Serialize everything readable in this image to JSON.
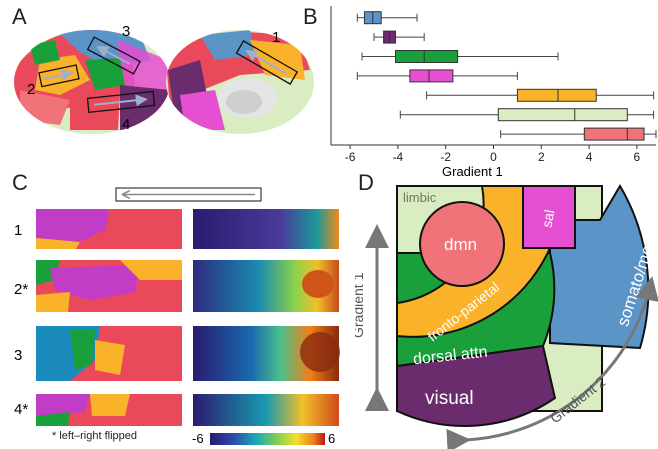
{
  "panels": {
    "A": "A",
    "B": "B",
    "C": "C",
    "D": "D"
  },
  "panel_a": {
    "region_labels": [
      "1",
      "2",
      "3",
      "4"
    ]
  },
  "chart_data": {
    "type": "box",
    "xlabel": "Gradient 1",
    "ylabel": "",
    "title": "",
    "xlim": [
      -6.8,
      6.8
    ],
    "xticks": [
      -6,
      -4,
      -2,
      0,
      2,
      4,
      6
    ],
    "xtick_labels": [
      "-6",
      "-4",
      "-2",
      "0",
      "2",
      "4",
      "6"
    ],
    "boxes": [
      {
        "network": "somato/mot",
        "color": "#5b95c8",
        "whisker_low": -5.7,
        "q1": -5.4,
        "median": -5.05,
        "q3": -4.7,
        "whisker_high": -3.2
      },
      {
        "network": "visual",
        "color": "#6b2c6d",
        "whisker_low": -5.0,
        "q1": -4.6,
        "median": -4.35,
        "q3": -4.1,
        "whisker_high": -2.9
      },
      {
        "network": "dorsal attn",
        "color": "#1aa03a",
        "whisker_low": -5.5,
        "q1": -4.1,
        "median": -2.9,
        "q3": -1.5,
        "whisker_high": 2.7
      },
      {
        "network": "sal",
        "color": "#e64fd1",
        "whisker_low": -5.7,
        "q1": -3.5,
        "median": -2.7,
        "q3": -1.7,
        "whisker_high": 1.0
      },
      {
        "network": "fronto-parietal",
        "color": "#f9b22a",
        "whisker_low": -2.8,
        "q1": 1.0,
        "median": 2.7,
        "q3": 4.3,
        "whisker_high": 6.7
      },
      {
        "network": "limbic",
        "color": "#d9ecc2",
        "whisker_low": -3.9,
        "q1": 0.2,
        "median": 3.4,
        "q3": 5.6,
        "whisker_high": 6.7
      },
      {
        "network": "dmn",
        "color": "#f07379",
        "whisker_low": 0.3,
        "q1": 3.8,
        "median": 5.6,
        "q3": 6.3,
        "whisker_high": 6.8
      }
    ]
  },
  "panel_c": {
    "row_labels": [
      "1",
      "2*",
      "3",
      "4*"
    ],
    "colorbar": {
      "min": "-6",
      "max": "6"
    },
    "footnote": "* left–right flipped"
  },
  "panel_d": {
    "networks": [
      "limbic",
      "sal",
      "dmn",
      "fronto-parietal",
      "somato/mot",
      "dorsal attn",
      "visual"
    ],
    "axis1": "Gradient 1",
    "axis2": "Gradient 2",
    "colors": {
      "limbic": "#d9ecc2",
      "sal": "#e64fd1",
      "dmn": "#f07379",
      "fronto-parietal": "#f9b22a",
      "somato_mot": "#5b95c8",
      "dorsal_attn": "#1aa03a",
      "visual": "#6b2c6d"
    }
  }
}
